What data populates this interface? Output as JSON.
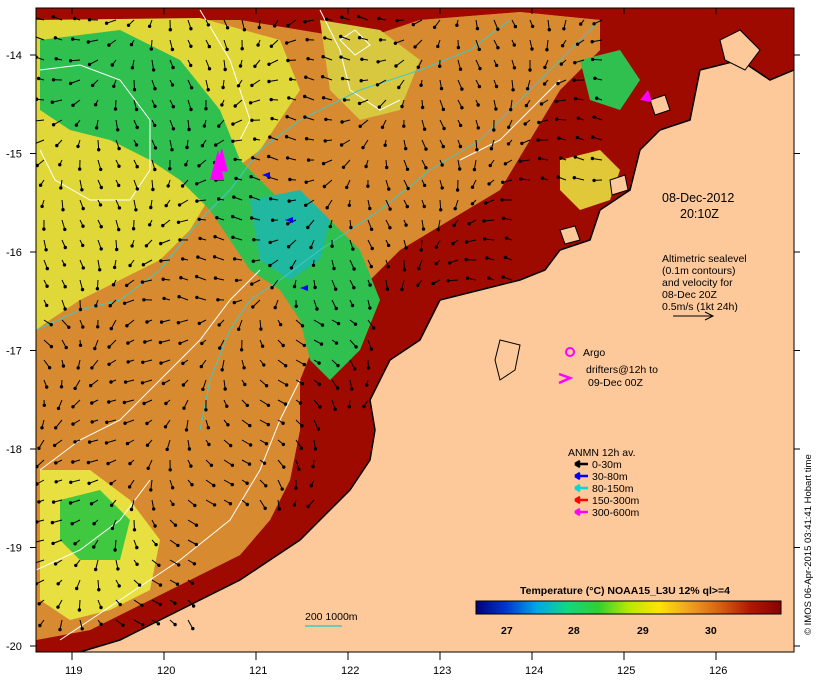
{
  "map": {
    "date_line1": "08-Dec-2012",
    "date_line2": "20:10Z",
    "altimetry": [
      "Altimetric sealevel",
      "(0.1m contours)",
      "and velocity for",
      "08-Dec 20Z",
      "0.5m/s (1kt 24h)"
    ],
    "argo_label": "Argo",
    "drifters": [
      "drifters@12h to",
      "09-Dec 00Z"
    ],
    "anmn_title": "ANMN 12h av.",
    "anmn_items": [
      {
        "label": "0-30m",
        "color": "#000000"
      },
      {
        "label": "30-80m",
        "color": "#0000ff"
      },
      {
        "label": "80-150m",
        "color": "#00d8d8"
      },
      {
        "label": "150-300m",
        "color": "#ff0000"
      },
      {
        "label": "300-600m",
        "color": "#ff00ff"
      }
    ],
    "bathy_label": "200  1000m",
    "colorbar": {
      "title": "Temperature (°C) NOAA15_L3U 12% ql>=4",
      "ticks": [
        "27",
        "28",
        "29",
        "30"
      ],
      "stops": [
        "#00007a",
        "#0038d0",
        "#00a8e8",
        "#10d880",
        "#30d030",
        "#b8e800",
        "#ffe400",
        "#f0a020",
        "#d86010",
        "#b01800",
        "#8a0000"
      ]
    },
    "x_ticks": [
      "119",
      "120",
      "121",
      "122",
      "123",
      "124",
      "125",
      "126"
    ],
    "y_ticks": [
      "-14",
      "-15",
      "-16",
      "-17",
      "-18",
      "-19",
      "-20"
    ],
    "credit": "© IMOS 06-Apr-2015 03:41:41 Hobart time",
    "colors": {
      "land": "#fdc89a",
      "warm": "#9e0a00",
      "orange": "#d87a28",
      "yellow": "#e8d838",
      "green": "#30c050",
      "contour": "#ffffff",
      "isobath": "#40c8c8"
    }
  }
}
